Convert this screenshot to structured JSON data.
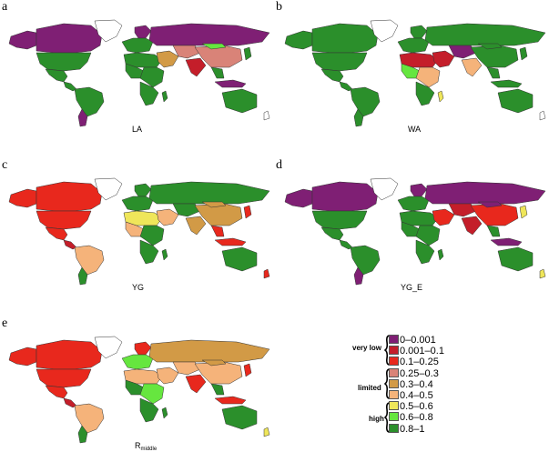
{
  "colors": {
    "c0": "#7f1f74",
    "c1": "#c41e2a",
    "c2": "#e8281d",
    "c3": "#d98378",
    "c4": "#d29a46",
    "c5": "#f5b37a",
    "c6": "#efe65a",
    "c7": "#66e63f",
    "c8": "#2b8f2b",
    "none": "#ffffff",
    "border": "#333333"
  },
  "panels": [
    {
      "letter": "a",
      "caption": "LA",
      "caption_sub": ""
    },
    {
      "letter": "b",
      "caption": "WA",
      "caption_sub": ""
    },
    {
      "letter": "c",
      "caption": "YG",
      "caption_sub": ""
    },
    {
      "letter": "d",
      "caption": "YG_E",
      "caption_sub": ""
    },
    {
      "letter": "e",
      "caption": "R",
      "caption_sub": "middle"
    }
  ],
  "legend": {
    "groups": [
      "very low",
      "limited",
      "high"
    ],
    "items": [
      {
        "label": "0–0.001",
        "color": "#7f1f74"
      },
      {
        "label": "0.001–0.1",
        "color": "#c41e2a"
      },
      {
        "label": "0.1–0.25",
        "color": "#e8281d"
      },
      {
        "label": "0.25–0.3",
        "color": "#d98378"
      },
      {
        "label": "0.3–0.4",
        "color": "#d29a46"
      },
      {
        "label": "0.4–0.5",
        "color": "#f5b37a"
      },
      {
        "label": "0.5–0.6",
        "color": "#efe65a"
      },
      {
        "label": "0.6–0.8",
        "color": "#66e63f"
      },
      {
        "label": "0.8–1",
        "color": "#2b8f2b"
      }
    ]
  },
  "maps": {
    "a": {
      "canada": "c0",
      "alaska": "c0",
      "usa": "c8",
      "greenland": "none",
      "mexico": "c8",
      "central": "c8",
      "south_america": "c8",
      "southern_cone": "c0",
      "europe": "c8",
      "scandinavia": "c0",
      "russia": "c0",
      "north_africa": "c8",
      "west_africa": "c8",
      "east_africa": "c8",
      "southern_africa": "c8",
      "middle_east": "c4",
      "central_asia": "c3",
      "india": "c1",
      "china": "c3",
      "mongolia": "c7",
      "se_asia": "c8",
      "indonesia": "c0",
      "japan": "c8",
      "australia": "c8",
      "new_zealand": "none",
      "madagascar": "c8"
    },
    "b": {
      "canada": "c8",
      "alaska": "c8",
      "usa": "c8",
      "greenland": "none",
      "mexico": "c8",
      "central": "c8",
      "south_america": "c8",
      "southern_cone": "c8",
      "europe": "c8",
      "scandinavia": "c8",
      "russia": "c8",
      "north_africa": "c1",
      "west_africa": "c7",
      "east_africa": "c5",
      "southern_africa": "c8",
      "middle_east": "c1",
      "central_asia": "c0",
      "india": "c5",
      "china": "c8",
      "mongolia": "c8",
      "se_asia": "c8",
      "indonesia": "c8",
      "japan": "c8",
      "australia": "c8",
      "new_zealand": "none",
      "madagascar": "c6"
    },
    "c": {
      "canada": "c2",
      "alaska": "c2",
      "usa": "c2",
      "greenland": "none",
      "mexico": "c2",
      "central": "c1",
      "south_america": "c5",
      "southern_cone": "c8",
      "europe": "c8",
      "scandinavia": "c8",
      "russia": "c8",
      "north_africa": "c6",
      "west_africa": "c5",
      "east_africa": "c8",
      "southern_africa": "c8",
      "middle_east": "c5",
      "central_asia": "c8",
      "india": "c4",
      "china": "c4",
      "mongolia": "c4",
      "se_asia": "c2",
      "indonesia": "c2",
      "japan": "c2",
      "australia": "c8",
      "new_zealand": "c2",
      "madagascar": "c8"
    },
    "d": {
      "canada": "c0",
      "alaska": "c0",
      "usa": "c8",
      "greenland": "none",
      "mexico": "c8",
      "central": "c8",
      "south_america": "c8",
      "southern_cone": "c0",
      "europe": "c8",
      "scandinavia": "c0",
      "russia": "c0",
      "north_africa": "c8",
      "west_africa": "c8",
      "east_africa": "c8",
      "southern_africa": "c8",
      "middle_east": "c2",
      "central_asia": "c1",
      "india": "c1",
      "china": "c2",
      "mongolia": "c0",
      "se_asia": "c8",
      "indonesia": "c0",
      "japan": "c6",
      "australia": "c8",
      "new_zealand": "c6",
      "madagascar": "c8"
    },
    "e": {
      "canada": "c2",
      "alaska": "c2",
      "usa": "c2",
      "greenland": "none",
      "mexico": "c2",
      "central": "c1",
      "south_america": "c5",
      "southern_cone": "c8",
      "europe": "c7",
      "scandinavia": "c2",
      "russia": "c4",
      "north_africa": "c5",
      "west_africa": "c8",
      "east_africa": "c7",
      "southern_africa": "c8",
      "middle_east": "c5",
      "central_asia": "c5",
      "india": "c2",
      "china": "c5",
      "mongolia": "c4",
      "se_asia": "c8",
      "indonesia": "c2",
      "japan": "c2",
      "australia": "c8",
      "new_zealand": "c6",
      "madagascar": "c8"
    }
  }
}
